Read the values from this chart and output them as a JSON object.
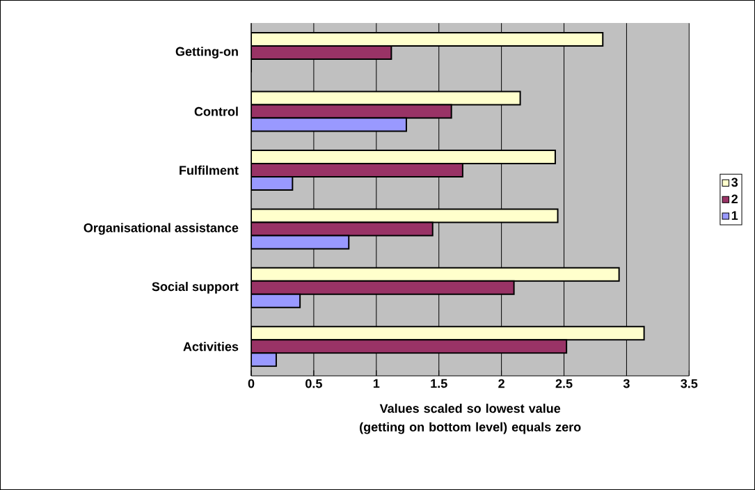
{
  "chart_data": {
    "type": "bar",
    "orientation": "horizontal",
    "categories": [
      "Getting-on",
      "Control",
      "Fulfilment",
      "Organisational assistance",
      "Social support",
      "Activities"
    ],
    "xlabel": "Values scaled so lowest value (getting on bottom level) equals zero",
    "xlim": [
      0,
      3.5
    ],
    "xticks": [
      0,
      0.5,
      1,
      1.5,
      2,
      2.5,
      3,
      3.5
    ],
    "grid": "x",
    "legend": "right",
    "series": [
      {
        "name": "3",
        "color": "#ffffcc",
        "values": [
          2.81,
          2.15,
          2.43,
          2.45,
          2.94,
          3.14
        ]
      },
      {
        "name": "2",
        "color": "#993366",
        "values": [
          1.12,
          1.6,
          1.69,
          1.45,
          2.1,
          2.52
        ]
      },
      {
        "name": "1",
        "color": "#9999ff",
        "values": [
          0,
          1.24,
          0.33,
          0.78,
          0.39,
          0.2
        ]
      }
    ]
  }
}
